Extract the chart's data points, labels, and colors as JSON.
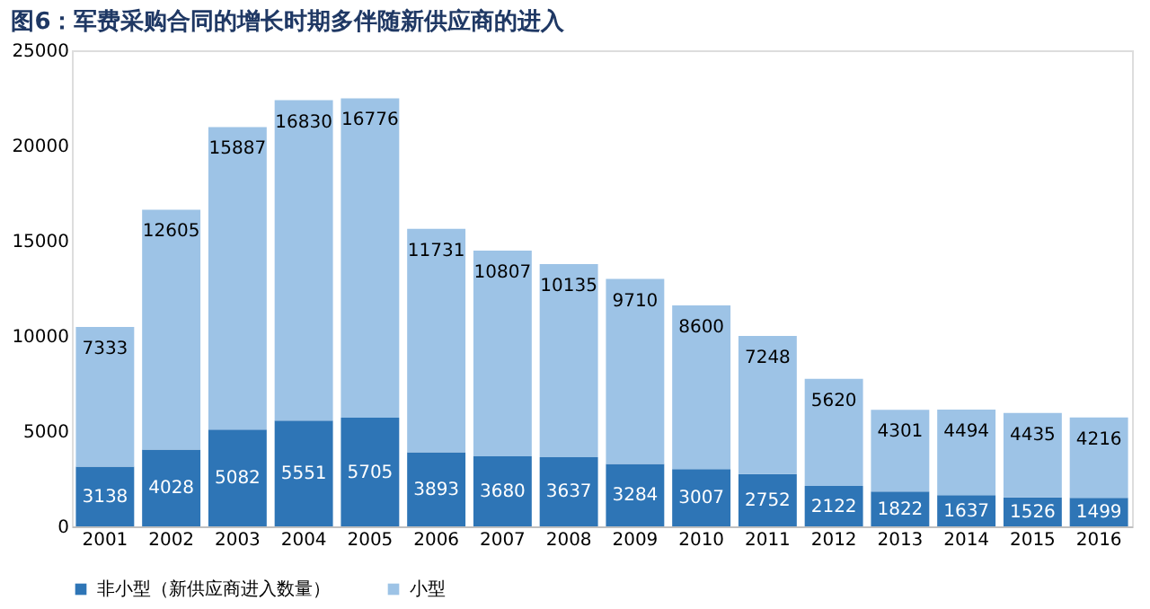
{
  "chart_data": {
    "type": "bar",
    "title": "图6：军费采购合同的增长时期多伴随新供应商的进入",
    "categories": [
      "2001",
      "2002",
      "2003",
      "2004",
      "2005",
      "2006",
      "2007",
      "2008",
      "2009",
      "2010",
      "2011",
      "2012",
      "2013",
      "2014",
      "2015",
      "2016"
    ],
    "series": [
      {
        "name": "非小型（新供应商进入数量）",
        "color": "#2e75b6",
        "values": [
          3138,
          4028,
          5082,
          5551,
          5705,
          3893,
          3680,
          3637,
          3284,
          3007,
          2752,
          2122,
          1822,
          1637,
          1526,
          1499
        ]
      },
      {
        "name": "小型",
        "color": "#9dc3e6",
        "values": [
          7333,
          12605,
          15887,
          16830,
          16776,
          11731,
          10807,
          10135,
          9710,
          8600,
          7248,
          5620,
          4301,
          4494,
          4435,
          4216
        ]
      }
    ],
    "stacked": true,
    "ylim": [
      0,
      25000
    ],
    "yticks": [
      0,
      5000,
      10000,
      15000,
      20000,
      25000
    ],
    "data_labels": true,
    "legend": "bottom",
    "grid": false
  }
}
